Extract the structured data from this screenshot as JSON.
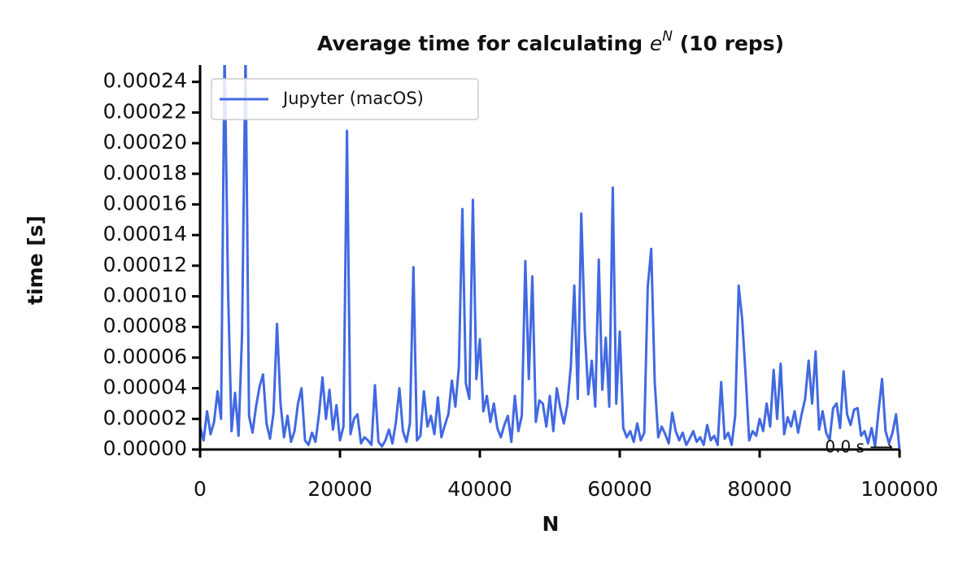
{
  "chart_data": {
    "type": "line",
    "title_parts": {
      "text": "Average time for calculating ",
      "base": "e",
      "exponent": "N",
      "suffix": " (10 reps)"
    },
    "xlabel": "N",
    "ylabel": "time [s]",
    "annotation": "0.0 s ⟶",
    "legend": "upper left",
    "grid": false,
    "xlim": [
      0,
      100000
    ],
    "xticks": [
      0,
      20000,
      40000,
      60000,
      80000,
      100000
    ],
    "ylim": [
      0,
      0.000251
    ],
    "yticks": [
      {
        "value": 0,
        "label": "0.00000"
      },
      2e-05,
      4e-05,
      6e-05,
      8e-05,
      {
        "value": 0.0001,
        "label": "0.00010"
      },
      0.00012,
      0.00014,
      0.00016,
      0.00018,
      {
        "value": 0.0002,
        "label": "0.00020"
      },
      0.00022,
      0.00024
    ],
    "x": [
      0,
      500,
      1000,
      1500,
      2000,
      2500,
      3000,
      3500,
      4000,
      4500,
      5000,
      5500,
      6000,
      6500,
      7000,
      7500,
      8000,
      8500,
      9000,
      9500,
      10000,
      10500,
      11000,
      11500,
      12000,
      12500,
      13000,
      13500,
      14000,
      14500,
      15000,
      15500,
      16000,
      16500,
      17000,
      17500,
      18000,
      18500,
      19000,
      19500,
      20000,
      20500,
      21000,
      21500,
      22000,
      22500,
      23000,
      23500,
      24000,
      24500,
      25000,
      25500,
      26000,
      26500,
      27000,
      27500,
      28000,
      28500,
      29000,
      29500,
      30000,
      30500,
      31000,
      31500,
      32000,
      32500,
      33000,
      33500,
      34000,
      34500,
      35000,
      35500,
      36000,
      36500,
      37000,
      37500,
      38000,
      38500,
      39000,
      39500,
      40000,
      40500,
      41000,
      41500,
      42000,
      42500,
      43000,
      43500,
      44000,
      44500,
      45000,
      45500,
      46000,
      46500,
      47000,
      47500,
      48000,
      48500,
      49000,
      49500,
      50000,
      50500,
      51000,
      51500,
      52000,
      52500,
      53000,
      53500,
      54000,
      54500,
      55000,
      55500,
      56000,
      56500,
      57000,
      57500,
      58000,
      58500,
      59000,
      59500,
      60000,
      60500,
      61000,
      61500,
      62000,
      62500,
      63000,
      63500,
      64000,
      64500,
      65000,
      65500,
      66000,
      66500,
      67000,
      67500,
      68000,
      68500,
      69000,
      69500,
      70000,
      70500,
      71000,
      71500,
      72000,
      72500,
      73000,
      73500,
      74000,
      74500,
      75000,
      75500,
      76000,
      76500,
      77000,
      77500,
      78000,
      78500,
      79000,
      79500,
      80000,
      80500,
      81000,
      81500,
      82000,
      82500,
      83000,
      83500,
      84000,
      84500,
      85000,
      85500,
      86000,
      86500,
      87000,
      87500,
      88000,
      88500,
      89000,
      89500,
      90000,
      90500,
      91000,
      91500,
      92000,
      92500,
      93000,
      93500,
      94000,
      94500,
      95000,
      95500,
      96000,
      96500,
      97000,
      97500,
      98000,
      98500,
      99000,
      99500,
      100000
    ],
    "series": [
      {
        "name": "Jupyter (macOS)",
        "color": "#4169e1",
        "values": [
          1.5e-05,
          6e-06,
          2.5e-05,
          1e-05,
          1.8e-05,
          3.8e-05,
          2e-05,
          0.00026,
          0.000104,
          1.2e-05,
          3.7e-05,
          9e-06,
          7.5e-05,
          0.00026,
          2.2e-05,
          1.1e-05,
          2.8e-05,
          4.1e-05,
          4.9e-05,
          1.7e-05,
          7e-06,
          2.4e-05,
          8.2e-05,
          3e-05,
          8e-06,
          2.2e-05,
          5e-06,
          1.2e-05,
          3e-05,
          4e-05,
          6e-06,
          3e-06,
          1.1e-05,
          5e-06,
          2.3e-05,
          4.7e-05,
          2e-05,
          3.9e-05,
          1.3e-05,
          2.9e-05,
          6e-06,
          1.5e-05,
          0.000208,
          1e-05,
          2e-05,
          2.3e-05,
          4e-06,
          8e-06,
          6e-06,
          3e-06,
          4.2e-05,
          5e-06,
          2e-06,
          6e-06,
          1.3e-05,
          4e-06,
          1.8e-05,
          4e-05,
          1.2e-05,
          5e-06,
          1.7e-05,
          0.000119,
          6e-06,
          9e-06,
          3.8e-05,
          1.5e-05,
          2.2e-05,
          1e-05,
          3.4e-05,
          8e-06,
          1.6e-05,
          2.3e-05,
          4.5e-05,
          2.8e-05,
          5.4e-05,
          0.000157,
          4.3e-05,
          3.3e-05,
          0.000163,
          4.6e-05,
          7.2e-05,
          2.5e-05,
          3.5e-05,
          1.8e-05,
          3e-05,
          1.4e-05,
          8e-06,
          1.6e-05,
          2.2e-05,
          5e-06,
          3.5e-05,
          1.2e-05,
          2.2e-05,
          0.000123,
          4.6e-05,
          0.000113,
          1.8e-05,
          3.2e-05,
          3e-05,
          1.5e-05,
          3.5e-05,
          1.2e-05,
          4e-05,
          2.7e-05,
          1.7e-05,
          2.9e-05,
          5.4e-05,
          0.000107,
          3.3e-05,
          0.000154,
          7.8e-05,
          3.6e-05,
          5.8e-05,
          2.8e-05,
          0.000124,
          3.9e-05,
          7.3e-05,
          2.8e-05,
          0.000171,
          3e-05,
          7.7e-05,
          1.4e-05,
          8e-06,
          1.2e-05,
          5e-06,
          1.7e-05,
          6e-06,
          1.1e-05,
          0.000106,
          0.000131,
          4.4e-05,
          8e-06,
          1.5e-05,
          1e-05,
          4e-06,
          2.4e-05,
          1.2e-05,
          6e-06,
          1.1e-05,
          3e-06,
          7e-06,
          1.2e-05,
          5e-06,
          8e-06,
          3e-06,
          1.6e-05,
          6e-06,
          9e-06,
          3e-06,
          4.4e-05,
          7e-06,
          1.1e-05,
          3e-06,
          2.2e-05,
          0.000107,
          8.5e-05,
          4.8e-05,
          6e-06,
          1.2e-05,
          9e-06,
          2e-05,
          1.2e-05,
          3e-05,
          1.5e-05,
          5.2e-05,
          2e-05,
          5.6e-05,
          1e-05,
          2.1e-05,
          1.5e-05,
          2.5e-05,
          1.1e-05,
          2.3e-05,
          3.3e-05,
          5.8e-05,
          3e-05,
          6.4e-05,
          1.3e-05,
          2.5e-05,
          1.1e-05,
          6e-06,
          2.7e-05,
          3e-05,
          1.4e-05,
          5.1e-05,
          2.3e-05,
          1.6e-05,
          2.6e-05,
          2.7e-05,
          9e-06,
          1.2e-05,
          4e-06,
          1.4e-05,
          2e-06,
          2.5e-05,
          4.6e-05,
          1.2e-05,
          4e-06,
          1.1e-05,
          2.3e-05,
          0
        ]
      }
    ]
  }
}
